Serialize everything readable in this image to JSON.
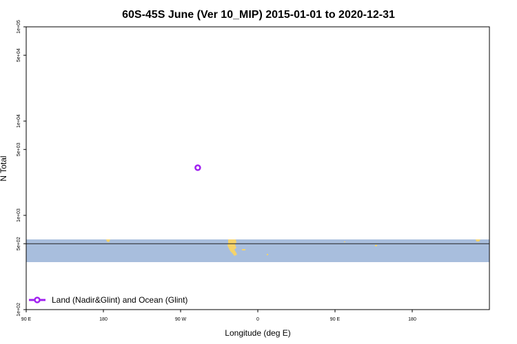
{
  "chart_data": {
    "type": "scatter",
    "title": "60S-45S June (Ver 10_MIP)   2015-01-01 to 2020-12-31",
    "xlabel": "Longitude (deg E)",
    "ylabel": "N Total",
    "xlim": [
      -90,
      180
    ],
    "ylim": [
      100,
      100000
    ],
    "y_scale": "log",
    "x_ticks": [
      {
        "value": -90,
        "label": "90 E"
      },
      {
        "value": -45,
        "label": "180"
      },
      {
        "value": 0,
        "label": "90 W"
      },
      {
        "value": 45,
        "label": "0"
      },
      {
        "value": 90,
        "label": "90 E"
      },
      {
        "value": 135,
        "label": "180"
      }
    ],
    "y_ticks": [
      {
        "value": 100,
        "label": "1e+02"
      },
      {
        "value": 500,
        "label": "5e+02"
      },
      {
        "value": 1000,
        "label": "1e+03"
      },
      {
        "value": 5000,
        "label": "5e+03"
      },
      {
        "value": 10000,
        "label": "1e+04"
      },
      {
        "value": 50000,
        "label": "5e+04"
      },
      {
        "value": 100000,
        "label": "1e+05"
      }
    ],
    "series": [
      {
        "name": "Land (Nadir&Glint) and Ocean (Glint)",
        "color": "#a020f0",
        "points": [
          {
            "x": 10,
            "y": 3200
          }
        ]
      }
    ],
    "map_overlay": {
      "band_lat_range": [
        -60,
        -45
      ],
      "ocean_color": "#a8bedd",
      "land_color": "#f5d36a",
      "reference_line_value": 500
    },
    "legend_position": "bottom-left",
    "grid": false
  }
}
